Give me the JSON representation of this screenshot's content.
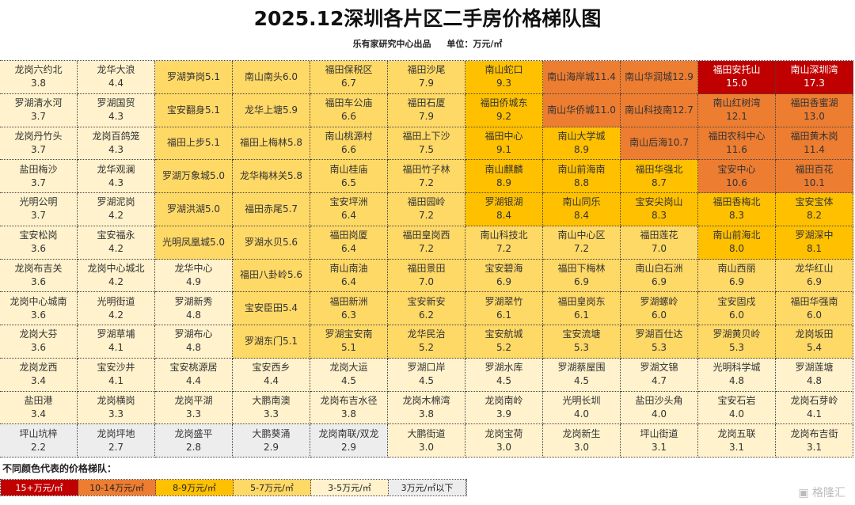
{
  "chart_data": {
    "type": "table",
    "title": "2025.12深圳各片区二手房价格梯队图",
    "source": "乐有家研究中心出品",
    "unit": "单位：万元/㎡",
    "rows": [
      [
        [
          "龙岗六约北",
          "3.8"
        ],
        [
          "龙华大浪",
          "4.4"
        ],
        [
          "罗湖笋岗",
          "5.1"
        ],
        [
          "南山南头",
          "6.0"
        ],
        [
          "福田保税区",
          "6.7"
        ],
        [
          "福田沙尾",
          "7.9"
        ],
        [
          "南山蛇口",
          "9.3"
        ],
        [
          "南山海岸城",
          "11.4"
        ],
        [
          "南山华润城",
          "12.9"
        ],
        [
          "福田安托山",
          "15.0"
        ],
        [
          "南山深圳湾",
          "17.3"
        ]
      ],
      [
        [
          "罗湖清水河",
          "3.7"
        ],
        [
          "罗湖国贸",
          "4.3"
        ],
        [
          "宝安翻身",
          "5.1"
        ],
        [
          "龙华上塘",
          "5.9"
        ],
        [
          "福田车公庙",
          "6.6"
        ],
        [
          "福田石厦",
          "7.9"
        ],
        [
          "福田侨城东",
          "9.2"
        ],
        [
          "南山华侨城",
          "11.0"
        ],
        [
          "南山科技南",
          "12.7"
        ],
        [
          "南山红树湾",
          "12.1"
        ],
        [
          "福田香蜜湖",
          "13.0"
        ]
      ],
      [
        [
          "龙岗丹竹头",
          "3.7"
        ],
        [
          "龙岗百鸽笼",
          "4.3"
        ],
        [
          "福田上步",
          "5.1"
        ],
        [
          "福田上梅林",
          "5.8"
        ],
        [
          "南山桃源村",
          "6.6"
        ],
        [
          "福田上下沙",
          "7.5"
        ],
        [
          "福田中心",
          "9.1"
        ],
        [
          "南山大学城",
          "8.9"
        ],
        [
          "南山后海",
          "10.7"
        ],
        [
          "福田农科中心",
          "11.6"
        ],
        [
          "福田黄木岗",
          "11.4"
        ]
      ],
      [
        [
          "盐田梅沙",
          "3.7"
        ],
        [
          "龙华观澜",
          "4.3"
        ],
        [
          "罗湖万象城",
          "5.0"
        ],
        [
          "龙华梅林关",
          "5.8"
        ],
        [
          "南山桂庙",
          "6.5"
        ],
        [
          "福田竹子林",
          "7.2"
        ],
        [
          "南山麒麟",
          "8.9"
        ],
        [
          "南山前海南",
          "8.8"
        ],
        [
          "福田华强北",
          "8.7"
        ],
        [
          "宝安中心",
          "10.6"
        ],
        [
          "福田百花",
          "10.1"
        ]
      ],
      [
        [
          "光明公明",
          "3.7"
        ],
        [
          "罗湖泥岗",
          "4.2"
        ],
        [
          "罗湖洪湖",
          "5.0"
        ],
        [
          "福田赤尾",
          "5.7"
        ],
        [
          "宝安坪洲",
          "6.4"
        ],
        [
          "福田园岭",
          "7.2"
        ],
        [
          "罗湖银湖",
          "8.4"
        ],
        [
          "南山同乐",
          "8.4"
        ],
        [
          "宝安尖岗山",
          "8.3"
        ],
        [
          "福田香梅北",
          "8.3"
        ],
        [
          "宝安宝体",
          "8.2"
        ]
      ],
      [
        [
          "宝安松岗",
          "3.6"
        ],
        [
          "宝安福永",
          "4.2"
        ],
        [
          "光明凤凰城",
          "5.0"
        ],
        [
          "罗湖水贝",
          "5.6"
        ],
        [
          "福田岗厦",
          "6.4"
        ],
        [
          "福田皇岗西",
          "7.2"
        ],
        [
          "南山科技北",
          "7.2"
        ],
        [
          "南山中心区",
          "7.2"
        ],
        [
          "福田莲花",
          "7.0"
        ],
        [
          "南山前海北",
          "8.0"
        ],
        [
          "罗湖深中",
          "8.1"
        ]
      ],
      [
        [
          "龙岗布吉关",
          "3.6"
        ],
        [
          "龙岗中心城北",
          "4.2"
        ],
        [
          "龙华中心",
          "4.9"
        ],
        [
          "福田八卦岭",
          "5.6"
        ],
        [
          "南山南油",
          "6.4"
        ],
        [
          "福田景田",
          "7.0"
        ],
        [
          "宝安碧海",
          "6.9"
        ],
        [
          "福田下梅林",
          "6.9"
        ],
        [
          "南山白石洲",
          "6.9"
        ],
        [
          "南山西丽",
          "6.9"
        ],
        [
          "龙华红山",
          "6.9"
        ]
      ],
      [
        [
          "龙岗中心城南",
          "3.6"
        ],
        [
          "光明街道",
          "4.2"
        ],
        [
          "罗湖新秀",
          "4.8"
        ],
        [
          "宝安臣田",
          "5.4"
        ],
        [
          "福田新洲",
          "6.3"
        ],
        [
          "宝安新安",
          "6.2"
        ],
        [
          "罗湖翠竹",
          "6.1"
        ],
        [
          "福田皇岗东",
          "6.1"
        ],
        [
          "罗湖螺岭",
          "6.0"
        ],
        [
          "宝安固戍",
          "6.0"
        ],
        [
          "福田华强南",
          "6.0"
        ]
      ],
      [
        [
          "龙岗大芬",
          "3.6"
        ],
        [
          "罗湖草埔",
          "4.1"
        ],
        [
          "罗湖布心",
          "4.8"
        ],
        [
          "罗湖东门",
          "5.1"
        ],
        [
          "罗湖宝安南",
          "5.1"
        ],
        [
          "龙华民治",
          "5.2"
        ],
        [
          "宝安航城",
          "5.2"
        ],
        [
          "宝安流塘",
          "5.3"
        ],
        [
          "罗湖百仕达",
          "5.3"
        ],
        [
          "罗湖黄贝岭",
          "5.3"
        ],
        [
          "龙岗坂田",
          "5.4"
        ]
      ],
      [
        [
          "龙岗龙西",
          "3.4"
        ],
        [
          "宝安沙井",
          "4.1"
        ],
        [
          "宝安桃源居",
          "4.4"
        ],
        [
          "宝安西乡",
          "4.4"
        ],
        [
          "龙岗大运",
          "4.5"
        ],
        [
          "罗湖口岸",
          "4.5"
        ],
        [
          "罗湖水库",
          "4.5"
        ],
        [
          "罗湖蔡屋围",
          "4.5"
        ],
        [
          "罗湖文锦",
          "4.7"
        ],
        [
          "光明科学城",
          "4.8"
        ],
        [
          "罗湖莲塘",
          "4.8"
        ]
      ],
      [
        [
          "盐田港",
          "3.4"
        ],
        [
          "龙岗横岗",
          "3.3"
        ],
        [
          "龙岗平湖",
          "3.3"
        ],
        [
          "大鹏南澳",
          "3.3"
        ],
        [
          "龙岗布吉水径",
          "3.8"
        ],
        [
          "龙岗木棉湾",
          "3.8"
        ],
        [
          "龙岗南岭",
          "3.9"
        ],
        [
          "光明长圳",
          "4.0"
        ],
        [
          "盐田沙头角",
          "4.0"
        ],
        [
          "宝安石岩",
          "4.0"
        ],
        [
          "龙岗石芽岭",
          "4.1"
        ]
      ],
      [
        [
          "坪山坑梓",
          "2.2"
        ],
        [
          "龙岗坪地",
          "2.7"
        ],
        [
          "龙岗盛平",
          "2.8"
        ],
        [
          "大鹏葵涌",
          "2.9"
        ],
        [
          "龙岗南联/双龙",
          "2.9"
        ],
        [
          "大鹏街道",
          "3.0"
        ],
        [
          "龙岗宝荷",
          "3.0"
        ],
        [
          "龙岗新生",
          "3.0"
        ],
        [
          "坪山街道",
          "3.1"
        ],
        [
          "龙岗五联",
          "3.1"
        ],
        [
          "龙岗布吉街",
          "3.1"
        ]
      ]
    ],
    "legend_title": "不同颜色代表的价格梯队：",
    "legend": [
      {
        "label": "15+万元/㎡",
        "color": "#C00000"
      },
      {
        "label": "10-14万元/㎡",
        "color": "#ED7D31"
      },
      {
        "label": "8-9万元/㎡",
        "color": "#FFC000"
      },
      {
        "label": "5-7万元/㎡",
        "color": "#FFD966"
      },
      {
        "label": "3-5万元/㎡",
        "color": "#FFF2CC"
      },
      {
        "label": "3万元/㎡以下",
        "color": "#EDEDED"
      }
    ]
  },
  "watermark": "格隆汇"
}
